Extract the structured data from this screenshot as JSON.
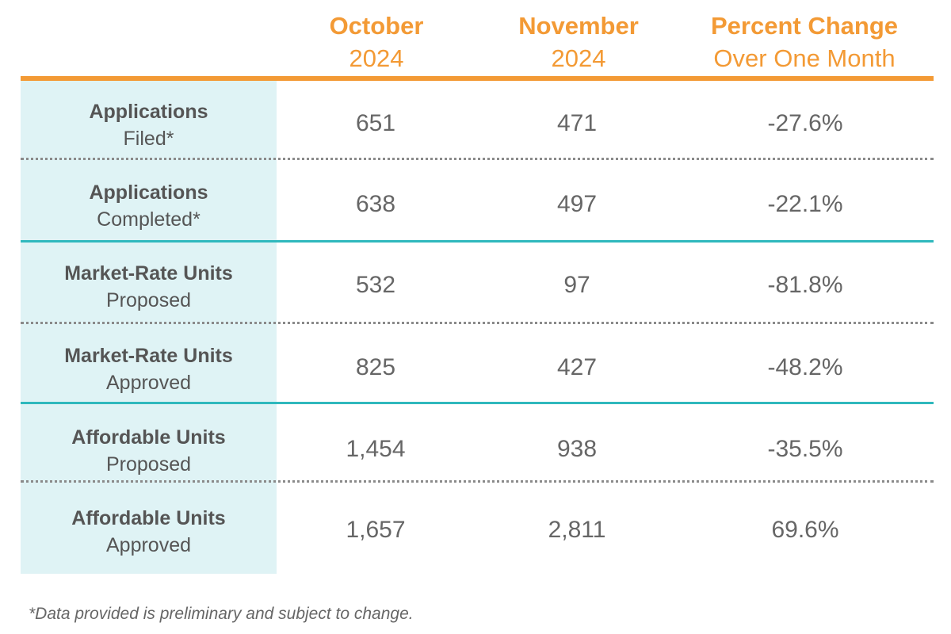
{
  "header": {
    "col1_line1": "October",
    "col1_line2": "2024",
    "col2_line1": "November",
    "col2_line2": "2024",
    "col3_line1": "Percent Change",
    "col3_line2": "Over One Month"
  },
  "rows": [
    {
      "label_bold": "Applications",
      "label_normal": "Filed*",
      "oct": "651",
      "nov": "471",
      "change": "-27.6%"
    },
    {
      "label_bold": "Applications",
      "label_normal": "Completed*",
      "oct": "638",
      "nov": "497",
      "change": "-22.1%"
    },
    {
      "label_bold": "Market-Rate Units",
      "label_normal": "Proposed",
      "oct": "532",
      "nov": "97",
      "change": "-81.8%"
    },
    {
      "label_bold": "Market-Rate Units",
      "label_normal": "Approved",
      "oct": "825",
      "nov": "427",
      "change": "-48.2%"
    },
    {
      "label_bold": "Affordable Units",
      "label_normal": "Proposed",
      "oct": "1,454",
      "nov": "938",
      "change": "-35.5%"
    },
    {
      "label_bold": "Affordable Units",
      "label_normal": "Approved",
      "oct": "1,657",
      "nov": "2,811",
      "change": "69.6%"
    }
  ],
  "footnote": "*Data provided is preliminary and subject to change.",
  "colors": {
    "accent_orange": "#f39a35",
    "label_background": "#dff3f5",
    "group_divider_teal": "#2fb8bd",
    "text_gray": "#666666"
  }
}
